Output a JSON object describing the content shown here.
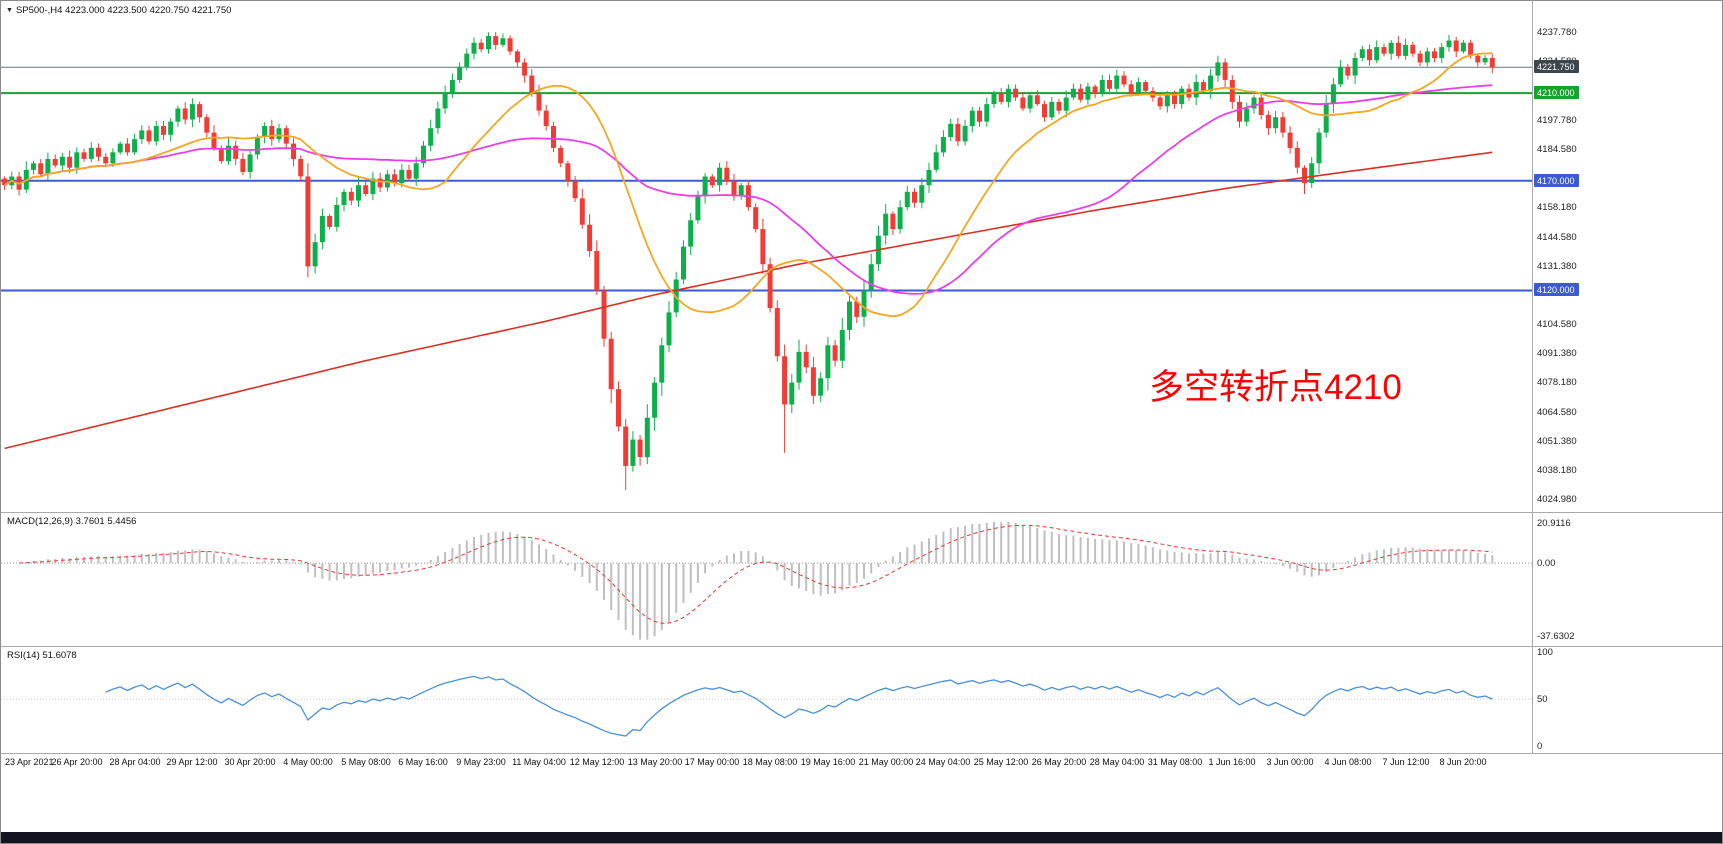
{
  "header": {
    "collapse_icon": "▼",
    "symbol_line": "SP500-,H4 4223.000 4223.500 4220.750 4221.750"
  },
  "annotation": {
    "text": "多空转折点4210",
    "color": "#ff0000"
  },
  "chart_data": {
    "type": "candlestick",
    "symbol": "SP500-",
    "timeframe": "H4",
    "current_ohlc": {
      "open": 4223.0,
      "high": 4223.5,
      "low": 4220.75,
      "close": 4221.75
    },
    "y_range": [
      4019,
      4252
    ],
    "y_ticks": [
      "4237.780",
      "4224.580",
      "4197.780",
      "4184.580",
      "4158.180",
      "4144.580",
      "4131.380",
      "4104.580",
      "4091.380",
      "4078.180",
      "4064.580",
      "4051.380",
      "4038.180",
      "4024.980"
    ],
    "x_labels": [
      "23 Apr 2021",
      "26 Apr 20:00",
      "28 Apr 04:00",
      "29 Apr 12:00",
      "30 Apr 20:00",
      "4 May 00:00",
      "5 May 08:00",
      "6 May 16:00",
      "9 May 23:00",
      "11 May 04:00",
      "12 May 12:00",
      "13 May 20:00",
      "17 May 00:00",
      "18 May 08:00",
      "19 May 16:00",
      "21 May 00:00",
      "24 May 04:00",
      "25 May 12:00",
      "26 May 20:00",
      "28 May 04:00",
      "31 May 08:00",
      "1 Jun 16:00",
      "3 Jun 00:00",
      "4 Jun 08:00",
      "7 Jun 12:00",
      "8 Jun 20:00"
    ],
    "label_start_bar": 2,
    "label_step_bars": 8,
    "closes": [
      4168,
      4172,
      4166,
      4175,
      4178,
      4173,
      4180,
      4177,
      4181,
      4176,
      4183,
      4180,
      4185,
      4181,
      4178,
      4183,
      4187,
      4183,
      4189,
      4193,
      4188,
      4195,
      4191,
      4197,
      4203,
      4198,
      4205,
      4199,
      4192,
      4185,
      4179,
      4186,
      4180,
      4174,
      4182,
      4190,
      4195,
      4189,
      4194,
      4187,
      4180,
      4172,
      4131,
      4142,
      4154,
      4149,
      4159,
      4165,
      4161,
      4168,
      4164,
      4171,
      4167,
      4173,
      4169,
      4175,
      4171,
      4178,
      4186,
      4194,
      4203,
      4210,
      4216,
      4222,
      4228,
      4233,
      4230,
      4236,
      4232,
      4235,
      4229,
      4224,
      4218,
      4210,
      4202,
      4195,
      4185,
      4178,
      4170,
      4162,
      4150,
      4138,
      4120,
      4098,
      4075,
      4058,
      4040,
      4052,
      4044,
      4062,
      4078,
      4095,
      4110,
      4125,
      4140,
      4152,
      4163,
      4172,
      4168,
      4176,
      4170,
      4163,
      4168,
      4158,
      4148,
      4132,
      4112,
      4090,
      4068,
      4078,
      4092,
      4085,
      4072,
      4080,
      4095,
      4088,
      4102,
      4115,
      4108,
      4120,
      4132,
      4145,
      4155,
      4148,
      4158,
      4165,
      4160,
      4168,
      4175,
      4183,
      4190,
      4196,
      4188,
      4195,
      4202,
      4197,
      4205,
      4210,
      4206,
      4212,
      4208,
      4203,
      4209,
      4205,
      4199,
      4206,
      4202,
      4208,
      4212,
      4207,
      4213,
      4210,
      4216,
      4212,
      4218,
      4214,
      4210,
      4215,
      4211,
      4208,
      4204,
      4209,
      4205,
      4212,
      4208,
      4215,
      4211,
      4218,
      4224,
      4216,
      4206,
      4197,
      4203,
      4208,
      4200,
      4194,
      4199,
      4192,
      4185,
      4176,
      4169,
      4178,
      4192,
      4205,
      4214,
      4222,
      4218,
      4226,
      4230,
      4225,
      4231,
      4228,
      4233,
      4227,
      4232,
      4228,
      4224,
      4229,
      4226,
      4231,
      4234,
      4229,
      4233,
      4227,
      4224,
      4226,
      4221.75
    ],
    "low_overrides": {
      "42": 4126,
      "86": 4029,
      "108": 4046,
      "180": 4164
    },
    "high_overrides": {
      "67": 4237.7,
      "200": 4236.5
    },
    "horizontal_lines": [
      {
        "price": 4221.75,
        "color": "#5e7a8a",
        "width": 1,
        "badge": "4221.750",
        "badge_bg": "#3d454d"
      },
      {
        "price": 4210.0,
        "color": "#17a22b",
        "width": 2,
        "badge": "4210.000",
        "badge_bg": "#17a22b"
      },
      {
        "price": 4170.0,
        "color": "#3c5bd2",
        "width": 2,
        "badge": "4170.000",
        "badge_bg": "#3c5bd2"
      },
      {
        "price": 4120.0,
        "color": "#3c5bd2",
        "width": 2,
        "badge": "4120.000",
        "badge_bg": "#3c5bd2"
      }
    ],
    "moving_averages": {
      "fast": {
        "period": 20,
        "color": "#f5a623"
      },
      "medium": {
        "period": 48,
        "color": "#e840e8"
      },
      "slow": {
        "color": "#d93025",
        "keypoints": [
          [
            0,
            4048
          ],
          [
            25,
            4068
          ],
          [
            50,
            4088
          ],
          [
            75,
            4106
          ],
          [
            90,
            4118
          ],
          [
            110,
            4132
          ],
          [
            130,
            4144
          ],
          [
            150,
            4156
          ],
          [
            170,
            4167
          ],
          [
            190,
            4176
          ],
          [
            206,
            4183
          ]
        ]
      }
    },
    "macd": {
      "label": "MACD(12,26,9) 3.7601 5.4456",
      "fast": 12,
      "slow": 26,
      "signal": 9,
      "ticks": [
        "20.9116",
        "0.00",
        "-37.6302"
      ],
      "range": [
        -43,
        26
      ],
      "histogram_color": "#bfbfbf",
      "signal_color": "#e53935"
    },
    "rsi": {
      "label": "RSI(14) 51.6078",
      "period": 14,
      "ticks": [
        "100",
        "50",
        "0"
      ],
      "range": [
        0,
        100
      ],
      "line_color": "#4a90d9"
    },
    "colors": {
      "background": "#ffffff",
      "up": "#0bb04a",
      "down": "#f23b34",
      "separator": "#a9a9a9",
      "axis_text": "#1c1c1c",
      "taskbar": "#12141f"
    }
  }
}
